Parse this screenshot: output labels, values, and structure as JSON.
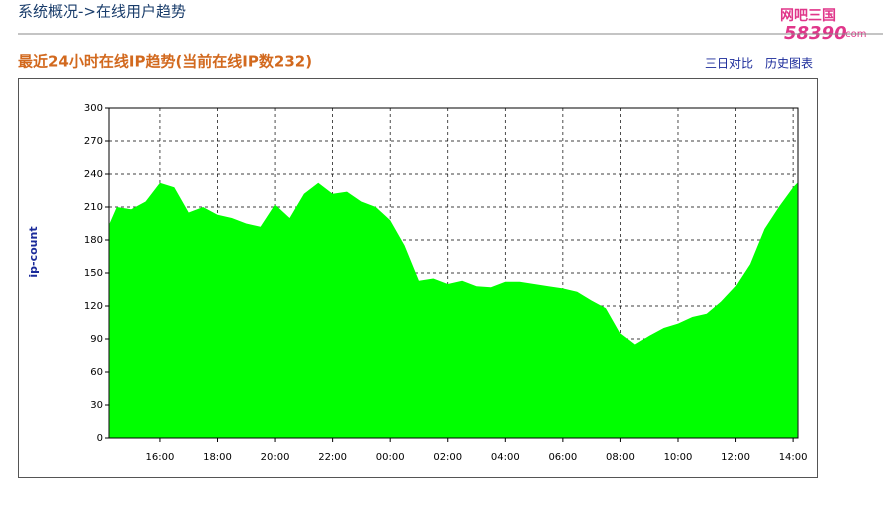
{
  "header": {
    "title": "系统概况->在线用户趋势",
    "logo_top": "网吧三国",
    "logo_bottom": "58390",
    "logo_suffix": ".com"
  },
  "panel": {
    "subtitle": "最近24小时在线IP趋势(当前在线IP数232)",
    "links": [
      "三日对比",
      "历史图表"
    ]
  },
  "chart_data": {
    "type": "area",
    "y_label": "ip-count",
    "color": "#00ff00",
    "grid": true,
    "x": [
      14.25,
      14.5,
      15,
      15.5,
      16,
      16.5,
      17,
      17.5,
      18,
      18.5,
      19,
      19.5,
      20,
      20.5,
      21,
      21.5,
      22,
      22.5,
      23,
      23.5,
      24,
      24.5,
      25,
      25.5,
      26,
      26.5,
      27,
      27.5,
      28,
      28.5,
      29,
      29.5,
      30,
      30.5,
      31,
      31.5,
      32,
      32.5,
      33,
      33.5,
      34,
      34.5,
      35,
      35.5,
      36,
      36.5,
      37,
      37.5,
      38,
      38.15
    ],
    "values": [
      195,
      210,
      208,
      215,
      232,
      228,
      205,
      210,
      203,
      200,
      195,
      192,
      212,
      200,
      222,
      232,
      222,
      224,
      215,
      210,
      198,
      175,
      143,
      145,
      140,
      143,
      138,
      137,
      142,
      142,
      140,
      138,
      136,
      133,
      125,
      118,
      95,
      85,
      93,
      100,
      104,
      110,
      113,
      124,
      138,
      158,
      190,
      210,
      228,
      232
    ],
    "xlim": [
      14.23,
      38.17
    ],
    "ylim": [
      0,
      300
    ],
    "xticks": [
      {
        "value": 16,
        "label": "16:00"
      },
      {
        "value": 18,
        "label": "18:00"
      },
      {
        "value": 20,
        "label": "20:00"
      },
      {
        "value": 22,
        "label": "22:00"
      },
      {
        "value": 24,
        "label": "00:00"
      },
      {
        "value": 26,
        "label": "02:00"
      },
      {
        "value": 28,
        "label": "04:00"
      },
      {
        "value": 30,
        "label": "06:00"
      },
      {
        "value": 32,
        "label": "08:00"
      },
      {
        "value": 34,
        "label": "10:00"
      },
      {
        "value": 36,
        "label": "12:00"
      },
      {
        "value": 38,
        "label": "14:00"
      }
    ],
    "yticks": [
      0,
      30,
      60,
      90,
      120,
      150,
      180,
      210,
      240,
      270,
      300
    ]
  }
}
